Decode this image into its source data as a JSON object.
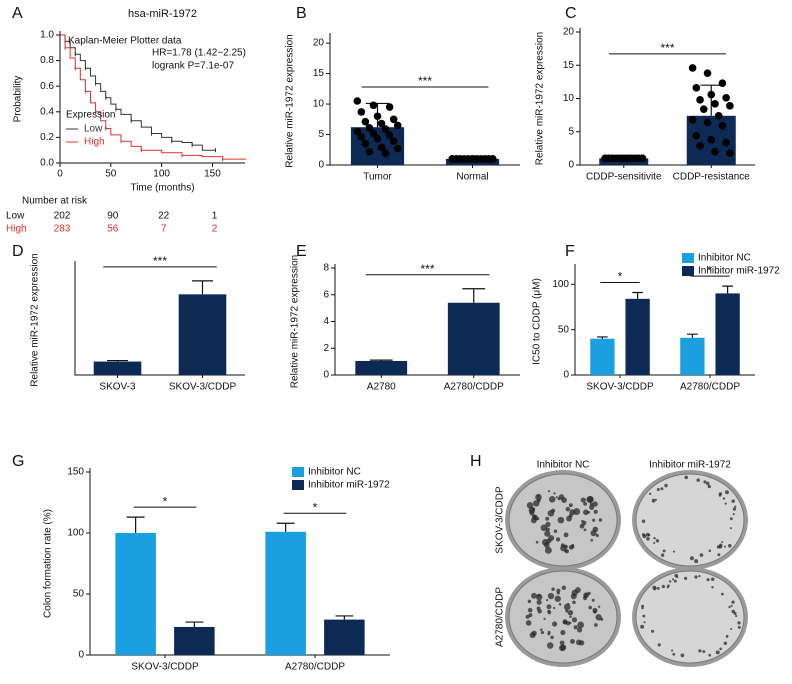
{
  "chart_data": [
    {
      "type": "line",
      "panel_label": "A",
      "title": "hsa-miR-1972",
      "subtitle": "Kaplan-Meier Plotter data",
      "annotations": [
        "HR=1.78 (1.42−2.25)",
        "logrank P=7.1e-07"
      ],
      "x_label": "Time (months)",
      "y_label": "Probability",
      "legend_title": "Expression",
      "xlim": [
        0,
        182
      ],
      "xticks": [
        0,
        50,
        100,
        150
      ],
      "ylim": [
        0,
        1
      ],
      "yticks": [
        {
          "value": 0,
          "label": "0.0"
        },
        0.2,
        0.4,
        0.6,
        0.8,
        {
          "value": 1,
          "label": "1.0"
        }
      ],
      "series": [
        {
          "name": "Low",
          "color": "#333333",
          "x": [
            0,
            5,
            10,
            15,
            20,
            25,
            30,
            35,
            40,
            45,
            50,
            55,
            60,
            70,
            80,
            90,
            100,
            110,
            120,
            130,
            140,
            153
          ],
          "values": [
            1,
            0.95,
            0.9,
            0.85,
            0.8,
            0.74,
            0.68,
            0.62,
            0.56,
            0.51,
            0.46,
            0.42,
            0.38,
            0.33,
            0.28,
            0.23,
            0.2,
            0.17,
            0.16,
            0.14,
            0.1,
            0.1
          ]
        },
        {
          "name": "High",
          "color": "#e03030",
          "x": [
            0,
            5,
            10,
            15,
            20,
            25,
            30,
            35,
            40,
            45,
            50,
            60,
            70,
            80,
            100,
            120,
            140,
            160,
            183
          ],
          "values": [
            1,
            0.9,
            0.82,
            0.74,
            0.65,
            0.56,
            0.47,
            0.4,
            0.33,
            0.27,
            0.22,
            0.17,
            0.13,
            0.1,
            0.08,
            0.06,
            0.05,
            0.03,
            0.03
          ]
        }
      ],
      "risk_table": {
        "title": "Number at risk",
        "x": [
          0,
          50,
          100,
          150
        ],
        "rows": [
          {
            "name": "Low",
            "color": "#111111",
            "values": [
              202,
              90,
              22,
              1
            ]
          },
          {
            "name": "High",
            "color": "#e03030",
            "values": [
              283,
              56,
              7,
              2
            ]
          }
        ]
      }
    },
    {
      "type": "bar",
      "panel_label": "B",
      "y_label": "Relative miR-1972 expression",
      "color": "#0d2a55",
      "categories": [
        "Tumor",
        "Normal"
      ],
      "values": [
        6.2,
        1.0
      ],
      "errors": [
        3.9,
        0.1
      ],
      "points": [
        [
          10.5,
          9.8,
          9.5,
          8.7,
          8.0,
          7.5,
          7.1,
          6.8,
          6.5,
          6.1,
          5.9,
          5.5,
          5.2,
          4.9,
          4.6,
          4.3,
          3.9,
          3.5,
          2.9,
          2.7,
          2.2,
          1.9
        ],
        [
          1,
          1,
          1,
          1,
          1,
          1,
          1,
          1,
          1,
          1,
          1,
          1,
          1,
          1,
          1,
          1,
          1,
          1,
          1,
          1
        ]
      ],
      "ylim": [
        0,
        21
      ],
      "yticks": [
        0,
        5,
        10,
        15,
        20
      ],
      "significance": "***"
    },
    {
      "type": "bar",
      "panel_label": "C",
      "y_label": "Relative miR-1972 expression",
      "color": "#0d2a55",
      "categories": [
        "CDDP-sensitivite",
        "CDDP-resistance"
      ],
      "values": [
        1.0,
        7.4
      ],
      "errors": [
        0.1,
        4.6
      ],
      "points": [
        [
          1,
          1,
          1,
          1,
          1,
          1,
          1,
          1,
          1,
          1,
          1,
          1,
          1,
          1,
          1,
          1,
          1,
          1,
          1,
          1
        ],
        [
          14.6,
          13.8,
          12.3,
          11.6,
          10.6,
          10.1,
          9.8,
          9.2,
          8.9,
          8.4,
          7.4,
          6.8,
          6.4,
          5.9,
          4.4,
          3.8,
          3.4,
          2.9,
          2.0,
          1.8
        ]
      ],
      "ylim": [
        0,
        20
      ],
      "yticks": [
        0,
        5,
        10,
        15,
        20
      ],
      "significance": "***"
    },
    {
      "type": "bar",
      "panel_label": "D",
      "y_label": "Relative miR-1972 expression",
      "color": "#0d2a55",
      "categories": [
        "SKOV-3",
        "SKOV-3/CDDP"
      ],
      "values": [
        1.1,
        6.6
      ],
      "errors": [
        0.08,
        1.1
      ],
      "ylim": [
        0,
        9
      ],
      "significance": "***"
    },
    {
      "type": "bar",
      "panel_label": "E",
      "y_label": "Relative miR-1972 expression",
      "color": "#0d2a55",
      "categories": [
        "A2780",
        "A2780/CDDP"
      ],
      "values": [
        1.05,
        5.4
      ],
      "errors": [
        0.06,
        1.05
      ],
      "ylim": [
        0,
        8
      ],
      "yticks": [
        0,
        2,
        4,
        6,
        8
      ],
      "significance": "***"
    },
    {
      "type": "bar",
      "panel_label": "F",
      "y_label": "IC50 to CDDP (μM)",
      "categories": [
        "SKOV-3/CDDP",
        "A2780/CDDP"
      ],
      "series": [
        {
          "name": "Inhibitor NC",
          "color": "#1a9fe0",
          "values": [
            40,
            41
          ],
          "errors": [
            2,
            4
          ]
        },
        {
          "name": "Inhibitor miR-1972",
          "color": "#0d2a55",
          "values": [
            84,
            90
          ],
          "errors": [
            7,
            8
          ]
        }
      ],
      "ylim": [
        0,
        118
      ],
      "yticks": [
        0,
        50,
        100
      ],
      "significance": [
        "*",
        "*"
      ]
    },
    {
      "type": "bar",
      "panel_label": "G",
      "y_label": "Colon formation rate (%)",
      "categories": [
        "SKOV-3/CDDP",
        "A2780/CDDP"
      ],
      "series": [
        {
          "name": "Inhibitor NC",
          "color": "#1a9fe0",
          "values": [
            100,
            101
          ],
          "errors": [
            13,
            7
          ]
        },
        {
          "name": "Inhibitor miR-1972",
          "color": "#0d2a55",
          "values": [
            23,
            29
          ],
          "errors": [
            4,
            3
          ]
        }
      ],
      "ylim": [
        0,
        150
      ],
      "yticks": [
        0,
        50,
        100,
        150
      ],
      "significance": [
        "*",
        "*"
      ]
    }
  ],
  "image_panel": {
    "panel_label": "H",
    "column_labels": [
      "Inhibitor NC",
      "Inhibitor miR-1972"
    ],
    "row_labels": [
      "SKOV-3/CDDP",
      "A2780/CDDP"
    ]
  }
}
